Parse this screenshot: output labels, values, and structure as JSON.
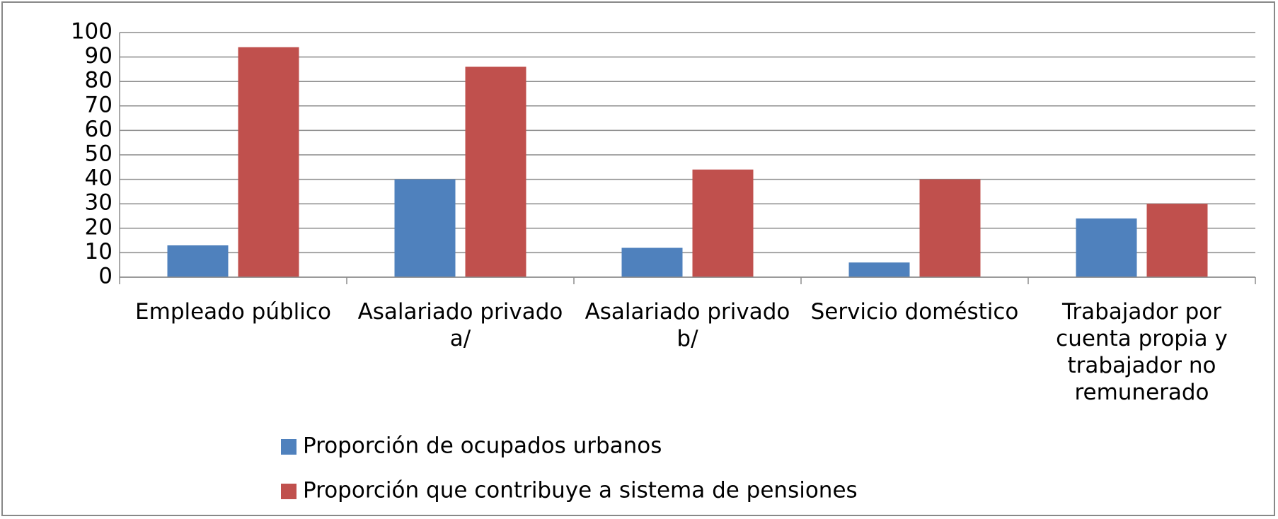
{
  "chart_data": {
    "type": "bar",
    "categories": [
      "Empleado público",
      "Asalariado privado a/",
      "Asalariado privado b/",
      "Servicio doméstico",
      "Trabajador por cuenta propia y trabajador no remunerado"
    ],
    "series": [
      {
        "name": "Proporción de ocupados urbanos",
        "color": "#4f81bd",
        "values": [
          13,
          40,
          12,
          6,
          24
        ]
      },
      {
        "name": "Proporción que contribuye a sistema de pensiones",
        "color": "#c0504d",
        "values": [
          94,
          86,
          44,
          40,
          30
        ]
      }
    ],
    "ylim": [
      0,
      100
    ],
    "yticks": [
      0,
      10,
      20,
      30,
      40,
      50,
      60,
      70,
      80,
      90,
      100
    ],
    "grid": true
  }
}
